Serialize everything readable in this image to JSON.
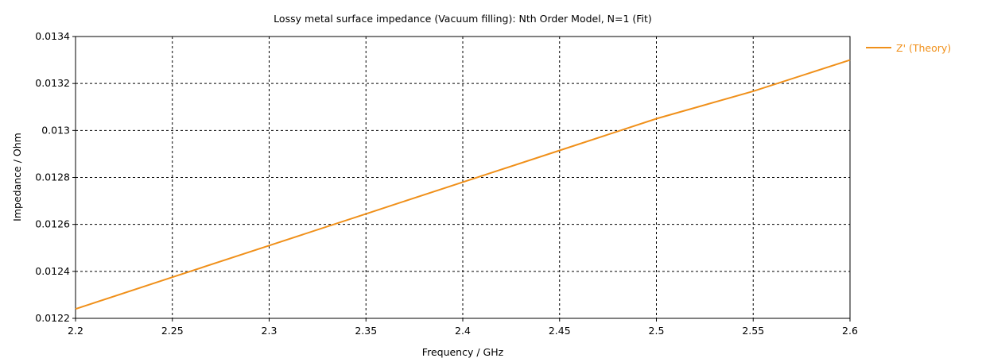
{
  "chart_data": {
    "type": "line",
    "title": "Lossy metal surface impedance (Vacuum filling): Nth Order Model, N=1 (Fit)",
    "xlabel": "Frequency / GHz",
    "ylabel": "Impedance / Ohm",
    "xlim": [
      2.2,
      2.6
    ],
    "ylim": [
      0.0122,
      0.0134
    ],
    "x_ticks": [
      2.2,
      2.25,
      2.3,
      2.35,
      2.4,
      2.45,
      2.5,
      2.55,
      2.6
    ],
    "x_tick_labels": [
      "2.2",
      "2.25",
      "2.3",
      "2.35",
      "2.4",
      "2.45",
      "2.5",
      "2.55",
      "2.6"
    ],
    "y_ticks": [
      0.0122,
      0.0124,
      0.0126,
      0.0128,
      0.013,
      0.0132,
      0.0134
    ],
    "y_tick_labels": [
      "0.0122",
      "0.0124",
      "0.0126",
      "0.0128",
      "0.013",
      "0.0132",
      "0.0134"
    ],
    "grid": true,
    "legend_position": "right",
    "series": [
      {
        "name": "Z' (Theory)",
        "color": "#f0901a",
        "x": [
          2.2,
          2.25,
          2.3,
          2.35,
          2.4,
          2.45,
          2.5,
          2.55,
          2.6
        ],
        "values": [
          0.01224,
          0.012375,
          0.01251,
          0.012645,
          0.01278,
          0.012915,
          0.01305,
          0.013167,
          0.0133
        ]
      }
    ]
  }
}
